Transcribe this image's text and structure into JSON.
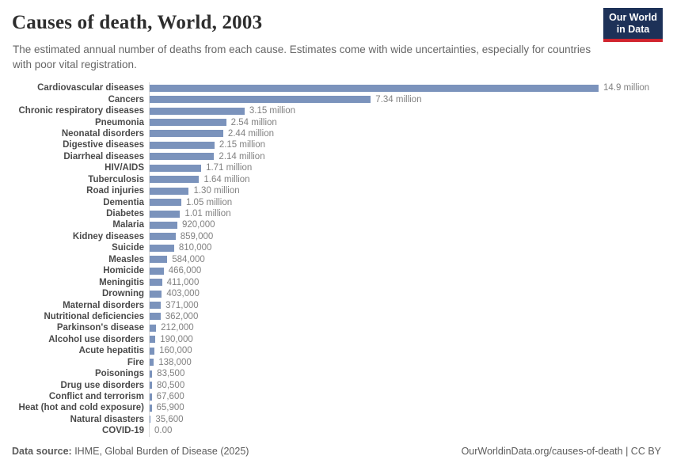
{
  "header": {
    "title": "Causes of death, World, 2003",
    "subtitle": "The estimated annual number of deaths from each cause. Estimates come with wide uncertainties, especially for countries with poor vital registration.",
    "logo": {
      "line1": "Our World",
      "line2": "in Data"
    }
  },
  "chart_data": {
    "type": "bar",
    "orientation": "horizontal",
    "title": "Causes of death, World, 2003",
    "xlabel": "",
    "ylabel": "",
    "xlim": [
      0,
      14900000
    ],
    "grid": false,
    "legend": false,
    "bar_color": "#7b93bc",
    "axis_line_color": "#dcdcdc",
    "categories": [
      "Cardiovascular diseases",
      "Cancers",
      "Chronic respiratory diseases",
      "Pneumonia",
      "Neonatal disorders",
      "Digestive diseases",
      "Diarrheal diseases",
      "HIV/AIDS",
      "Tuberculosis",
      "Road injuries",
      "Dementia",
      "Diabetes",
      "Malaria",
      "Kidney diseases",
      "Suicide",
      "Measles",
      "Homicide",
      "Meningitis",
      "Drowning",
      "Maternal disorders",
      "Nutritional deficiencies",
      "Parkinson's disease",
      "Alcohol use disorders",
      "Acute hepatitis",
      "Fire",
      "Poisonings",
      "Drug use disorders",
      "Conflict and terrorism",
      "Heat (hot and cold exposure)",
      "Natural disasters",
      "COVID-19"
    ],
    "values": [
      14900000,
      7340000,
      3150000,
      2540000,
      2440000,
      2150000,
      2140000,
      1710000,
      1640000,
      1300000,
      1050000,
      1010000,
      920000,
      859000,
      810000,
      584000,
      466000,
      411000,
      403000,
      371000,
      362000,
      212000,
      190000,
      160000,
      138000,
      83500,
      80500,
      67600,
      65900,
      35600,
      0
    ],
    "value_labels": [
      "14.9 million",
      "7.34 million",
      "3.15 million",
      "2.54 million",
      "2.44 million",
      "2.15 million",
      "2.14 million",
      "1.71 million",
      "1.64 million",
      "1.30 million",
      "1.05 million",
      "1.01 million",
      "920,000",
      "859,000",
      "810,000",
      "584,000",
      "466,000",
      "411,000",
      "403,000",
      "371,000",
      "362,000",
      "212,000",
      "190,000",
      "160,000",
      "138,000",
      "83,500",
      "80,500",
      "67,600",
      "65,900",
      "35,600",
      "0.00"
    ]
  },
  "footer": {
    "datasource_label": "Data source:",
    "datasource_text": " IHME, Global Burden of Disease (2025)",
    "credit_text": "OurWorldinData.org/causes-of-death | CC BY"
  },
  "colors": {
    "bar": "#7b93bc",
    "logo_navy": "#1d3158",
    "logo_red": "#d1242e",
    "title_text": "#2d2d2d",
    "subtitle_text": "#666666",
    "category_text": "#4a4a4a",
    "value_text": "#818181"
  }
}
